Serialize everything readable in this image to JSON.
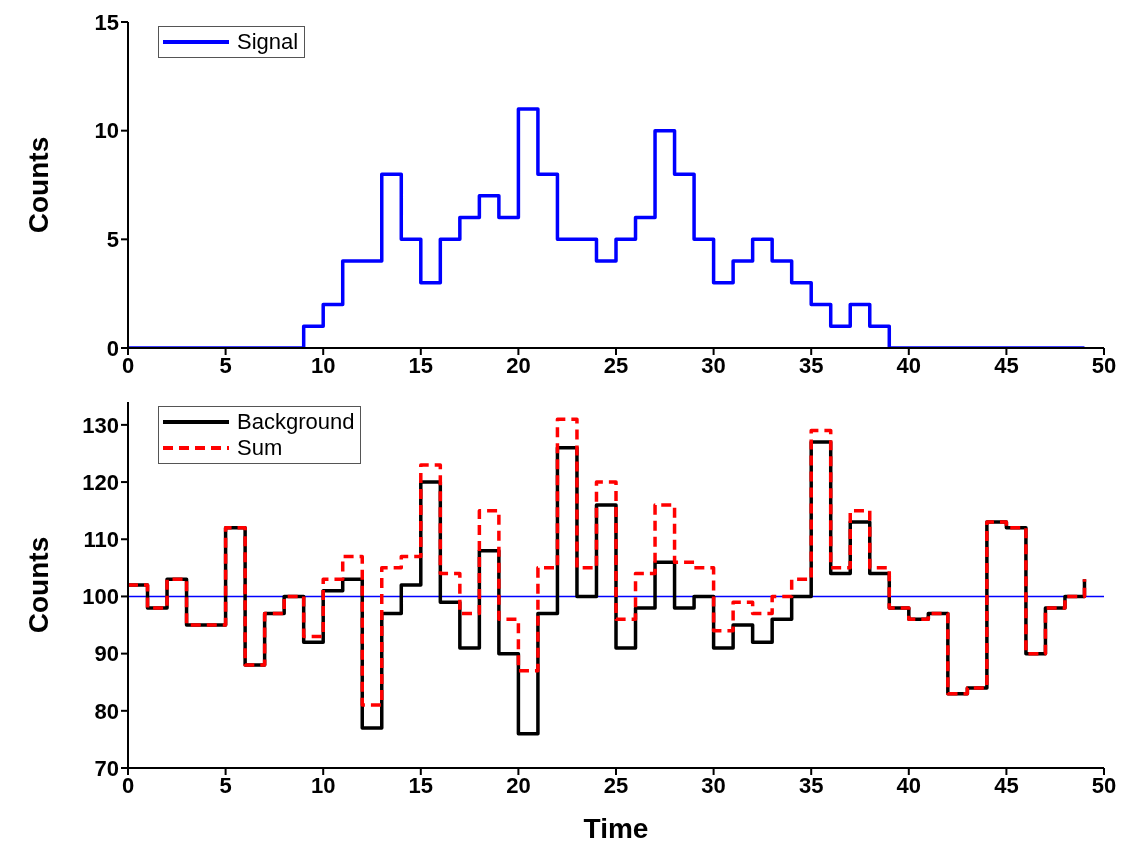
{
  "chart_data": [
    {
      "type": "step",
      "ylabel": "Counts",
      "x": [
        0,
        1,
        2,
        3,
        4,
        5,
        6,
        7,
        8,
        9,
        10,
        11,
        12,
        13,
        14,
        15,
        16,
        17,
        18,
        19,
        20,
        21,
        22,
        23,
        24,
        25,
        26,
        27,
        28,
        29,
        30,
        31,
        32,
        33,
        34,
        35,
        36,
        37,
        38,
        39,
        40,
        41,
        42,
        43,
        44,
        45,
        46,
        47,
        48,
        49
      ],
      "series": [
        {
          "name": "Signal",
          "color": "#0000ff",
          "line_style": "solid",
          "values": [
            0,
            0,
            0,
            0,
            0,
            0,
            0,
            0,
            0,
            1,
            2,
            4,
            4,
            8,
            5,
            3,
            5,
            6,
            7,
            6,
            11,
            8,
            5,
            5,
            4,
            5,
            6,
            10,
            8,
            5,
            3,
            4,
            5,
            4,
            3,
            2,
            1,
            2,
            1,
            0,
            0,
            0,
            0,
            0,
            0,
            0,
            0,
            0,
            0,
            0
          ]
        }
      ],
      "xlim": [
        0,
        50
      ],
      "xticks": [
        0,
        5,
        10,
        15,
        20,
        25,
        30,
        35,
        40,
        45,
        50
      ],
      "ylim": [
        0,
        15
      ],
      "yticks": [
        0,
        5,
        10,
        15
      ],
      "grid": false,
      "legend": "top left",
      "marker": "none"
    },
    {
      "type": "step",
      "xlabel": "Time",
      "ylabel": "Counts",
      "x": [
        0,
        1,
        2,
        3,
        4,
        5,
        6,
        7,
        8,
        9,
        10,
        11,
        12,
        13,
        14,
        15,
        16,
        17,
        18,
        19,
        20,
        21,
        22,
        23,
        24,
        25,
        26,
        27,
        28,
        29,
        30,
        31,
        32,
        33,
        34,
        35,
        36,
        37,
        38,
        39,
        40,
        41,
        42,
        43,
        44,
        45,
        46,
        47,
        48,
        49
      ],
      "series": [
        {
          "name": "Background",
          "color": "#000000",
          "line_style": "solid",
          "values": [
            102,
            98,
            103,
            95,
            95,
            112,
            88,
            97,
            100,
            92,
            101,
            103,
            77,
            97,
            102,
            120,
            99,
            91,
            108,
            90,
            76,
            97,
            126,
            100,
            116,
            91,
            98,
            106,
            98,
            100,
            91,
            95,
            92,
            96,
            100,
            127,
            104,
            113,
            104,
            98,
            96,
            97,
            83,
            84,
            113,
            112,
            90,
            98,
            100,
            103
          ]
        },
        {
          "name": "Sum",
          "color": "#ff0000",
          "line_style": "dashed",
          "values": [
            102,
            98,
            103,
            95,
            95,
            112,
            88,
            97,
            100,
            93,
            103,
            107,
            81,
            105,
            107,
            123,
            104,
            97,
            115,
            96,
            87,
            105,
            131,
            105,
            120,
            96,
            104,
            116,
            106,
            105,
            94,
            99,
            97,
            100,
            103,
            129,
            105,
            115,
            105,
            98,
            96,
            97,
            83,
            84,
            113,
            112,
            90,
            98,
            100,
            103
          ]
        }
      ],
      "ref_lines": [
        {
          "axis": "y",
          "value": 100,
          "color": "#0000ff",
          "line_style": "solid"
        }
      ],
      "xlim": [
        0,
        50
      ],
      "xticks": [
        0,
        5,
        10,
        15,
        20,
        25,
        30,
        35,
        40,
        45,
        50
      ],
      "ylim": [
        70,
        134
      ],
      "yticks": [
        70,
        80,
        90,
        100,
        110,
        120,
        130
      ],
      "grid": false,
      "legend": "top left",
      "marker": "none"
    }
  ]
}
